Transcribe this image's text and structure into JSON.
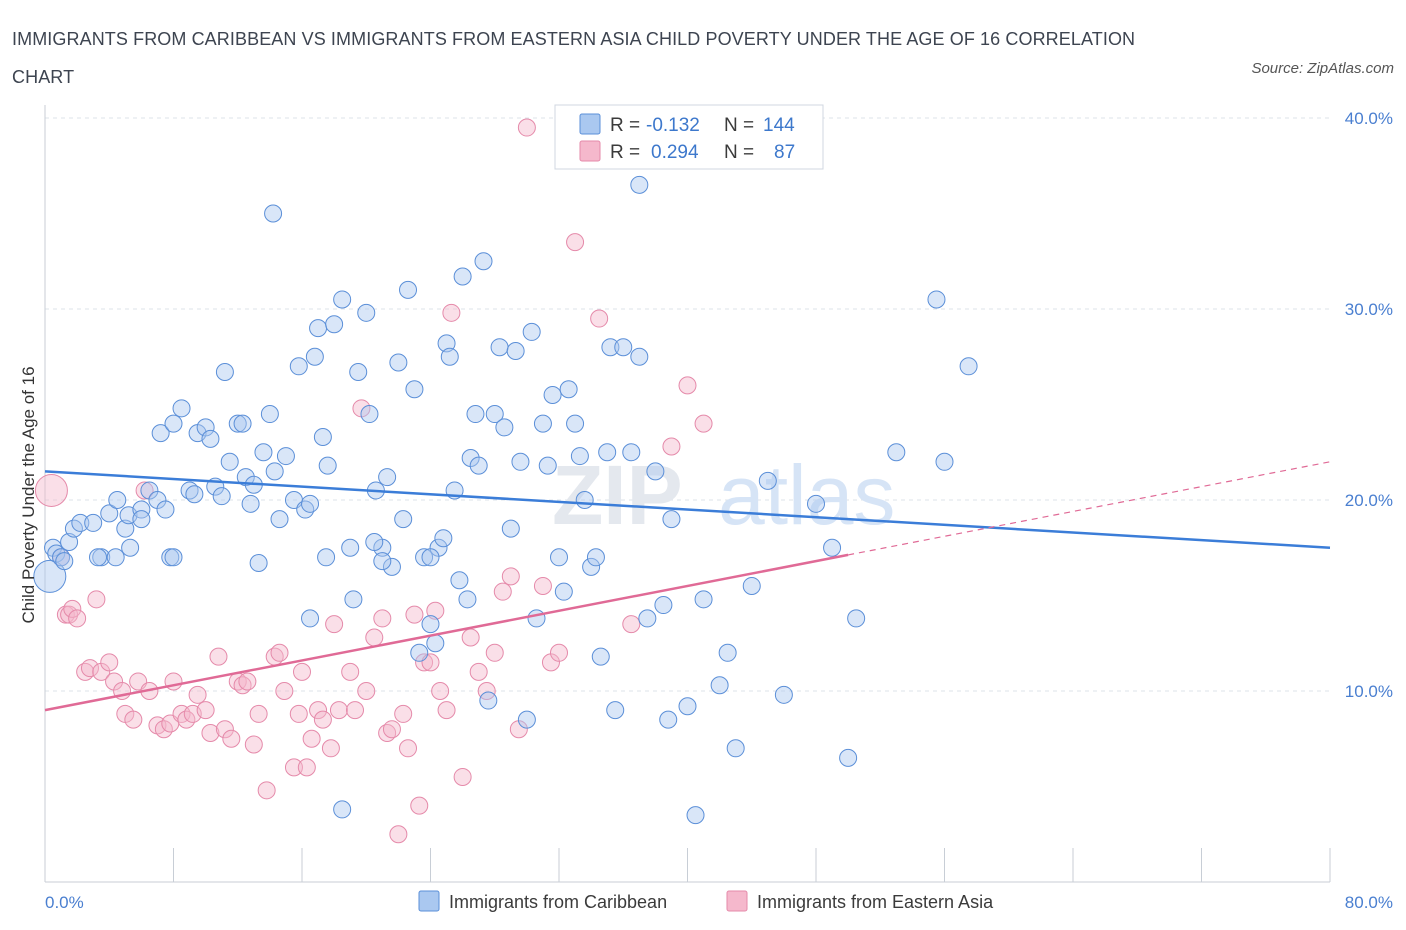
{
  "title": "IMMIGRANTS FROM CARIBBEAN VS IMMIGRANTS FROM EASTERN ASIA CHILD POVERTY UNDER THE AGE OF 16 CORRELATION CHART",
  "source": "Source: ZipAtlas.com",
  "colors": {
    "caribbean_fill": "#aac8f0",
    "caribbean_stroke": "#5b8fd8",
    "caribbean_line": "#3b7dd8",
    "eastasia_fill": "#f5b8cc",
    "eastasia_stroke": "#e58aaa",
    "eastasia_line": "#e06a96",
    "axis_text": "#4a7fd0",
    "grid": "#dde3ea"
  },
  "legend": {
    "rows": [
      {
        "r_label": "R =",
        "r_value": "-0.132",
        "n_label": "N =",
        "n_value": "144"
      },
      {
        "r_label": "R =",
        "r_value": "0.294",
        "n_label": "N =",
        "n_value": "87"
      }
    ]
  },
  "watermark": {
    "part1": "ZIP",
    "part2": "atlas"
  },
  "chart_data": {
    "type": "scatter",
    "title": "IMMIGRANTS FROM CARIBBEAN VS IMMIGRANTS FROM EASTERN ASIA CHILD POVERTY UNDER THE AGE OF 16 CORRELATION CHART",
    "xlabel": "",
    "ylabel": "Child Poverty Under the Age of 16",
    "xlim": [
      0,
      80
    ],
    "ylim": [
      0,
      40
    ],
    "x_tick_labels": [
      "0.0%",
      "80.0%"
    ],
    "y_tick_labels": [
      "10.0%",
      "20.0%",
      "30.0%",
      "40.0%"
    ],
    "y_ticks": [
      10,
      20,
      30,
      40
    ],
    "series": [
      {
        "name": "Immigrants from Caribbean",
        "R": -0.132,
        "N": 144,
        "trend": {
          "x": [
            0,
            80
          ],
          "y": [
            21.5,
            17.5
          ],
          "dashed_from_x": null
        },
        "points": [
          [
            0.3,
            16.0
          ],
          [
            0.5,
            17.5
          ],
          [
            0.7,
            17.2
          ],
          [
            1.0,
            17.0
          ],
          [
            1.2,
            16.8
          ],
          [
            1.5,
            17.8
          ],
          [
            1.8,
            18.5
          ],
          [
            2.2,
            18.8
          ],
          [
            3.0,
            18.8
          ],
          [
            3.5,
            17.0
          ],
          [
            4.0,
            19.3
          ],
          [
            4.5,
            20.0
          ],
          [
            5.0,
            18.5
          ],
          [
            5.3,
            17.5
          ],
          [
            5.2,
            19.2
          ],
          [
            4.4,
            17.0
          ],
          [
            6.0,
            19.5
          ],
          [
            6.5,
            20.5
          ],
          [
            7.0,
            20.0
          ],
          [
            7.5,
            19.5
          ],
          [
            7.2,
            23.5
          ],
          [
            7.8,
            17.0
          ],
          [
            8.0,
            24.0
          ],
          [
            8.5,
            24.8
          ],
          [
            9.0,
            20.5
          ],
          [
            9.3,
            20.3
          ],
          [
            9.5,
            23.5
          ],
          [
            10.0,
            23.8
          ],
          [
            10.3,
            23.2
          ],
          [
            10.6,
            20.7
          ],
          [
            11.0,
            20.2
          ],
          [
            11.2,
            26.7
          ],
          [
            11.5,
            22.0
          ],
          [
            12.0,
            24.0
          ],
          [
            12.3,
            24.0
          ],
          [
            12.5,
            21.2
          ],
          [
            12.8,
            19.8
          ],
          [
            13.0,
            20.8
          ],
          [
            13.3,
            16.7
          ],
          [
            13.6,
            22.5
          ],
          [
            14.0,
            24.5
          ],
          [
            14.3,
            21.5
          ],
          [
            14.6,
            19.0
          ],
          [
            15.0,
            22.3
          ],
          [
            14.2,
            35.0
          ],
          [
            15.5,
            20.0
          ],
          [
            15.8,
            27.0
          ],
          [
            16.2,
            19.5
          ],
          [
            16.5,
            19.8
          ],
          [
            16.8,
            27.5
          ],
          [
            17.0,
            29.0
          ],
          [
            17.3,
            23.3
          ],
          [
            17.6,
            21.8
          ],
          [
            18.0,
            29.2
          ],
          [
            17.5,
            17.0
          ],
          [
            18.5,
            30.5
          ],
          [
            19.0,
            17.5
          ],
          [
            19.2,
            14.8
          ],
          [
            19.5,
            26.7
          ],
          [
            20.0,
            29.8
          ],
          [
            20.2,
            24.5
          ],
          [
            20.6,
            20.5
          ],
          [
            21.0,
            17.5
          ],
          [
            21.3,
            21.2
          ],
          [
            21.6,
            16.5
          ],
          [
            22.0,
            27.2
          ],
          [
            22.3,
            19.0
          ],
          [
            22.6,
            31.0
          ],
          [
            23.0,
            25.8
          ],
          [
            23.3,
            12.0
          ],
          [
            23.6,
            17.0
          ],
          [
            24.0,
            13.5
          ],
          [
            24.3,
            12.5
          ],
          [
            24.5,
            17.5
          ],
          [
            24.8,
            18.0
          ],
          [
            25.0,
            28.2
          ],
          [
            25.2,
            27.5
          ],
          [
            25.5,
            20.5
          ],
          [
            25.8,
            15.8
          ],
          [
            26.0,
            31.7
          ],
          [
            26.3,
            14.8
          ],
          [
            26.5,
            22.2
          ],
          [
            26.8,
            24.5
          ],
          [
            27.0,
            21.8
          ],
          [
            27.3,
            32.5
          ],
          [
            27.6,
            9.5
          ],
          [
            28.0,
            24.5
          ],
          [
            28.3,
            28.0
          ],
          [
            28.6,
            23.8
          ],
          [
            29.0,
            18.5
          ],
          [
            29.3,
            27.8
          ],
          [
            29.6,
            22.0
          ],
          [
            30.0,
            8.5
          ],
          [
            30.3,
            28.8
          ],
          [
            30.6,
            13.8
          ],
          [
            31.0,
            24.0
          ],
          [
            31.3,
            21.8
          ],
          [
            31.6,
            25.5
          ],
          [
            32.0,
            17.0
          ],
          [
            32.3,
            15.2
          ],
          [
            32.6,
            25.8
          ],
          [
            33.0,
            24.0
          ],
          [
            33.3,
            22.3
          ],
          [
            33.6,
            20.0
          ],
          [
            34.0,
            16.5
          ],
          [
            34.3,
            17.0
          ],
          [
            34.6,
            11.8
          ],
          [
            35.0,
            22.5
          ],
          [
            35.2,
            28.0
          ],
          [
            35.5,
            9.0
          ],
          [
            36.0,
            28.0
          ],
          [
            36.5,
            22.5
          ],
          [
            37.0,
            27.5
          ],
          [
            37.5,
            13.8
          ],
          [
            38.0,
            21.5
          ],
          [
            38.5,
            14.5
          ],
          [
            38.8,
            8.5
          ],
          [
            39.0,
            19.0
          ],
          [
            40.0,
            9.2
          ],
          [
            41.0,
            14.8
          ],
          [
            42.0,
            10.3
          ],
          [
            42.5,
            12.0
          ],
          [
            43.0,
            7.0
          ],
          [
            44.0,
            15.5
          ],
          [
            45.0,
            21.0
          ],
          [
            46.0,
            9.8
          ],
          [
            48.0,
            19.8
          ],
          [
            49.0,
            17.5
          ],
          [
            50.0,
            6.5
          ],
          [
            50.5,
            13.8
          ],
          [
            53.0,
            22.5
          ],
          [
            55.5,
            30.5
          ],
          [
            56.0,
            22.0
          ],
          [
            57.5,
            27.0
          ],
          [
            18.5,
            3.8
          ],
          [
            40.5,
            3.5
          ],
          [
            16.5,
            13.8
          ],
          [
            20.5,
            17.8
          ],
          [
            21.0,
            16.8
          ],
          [
            24.0,
            17.0
          ],
          [
            8.0,
            17.0
          ],
          [
            3.3,
            17.0
          ],
          [
            6.0,
            19.0
          ],
          [
            37.0,
            36.5
          ]
        ]
      },
      {
        "name": "Immigrants from Eastern Asia",
        "R": 0.294,
        "N": 87,
        "trend": {
          "x": [
            0,
            80
          ],
          "y": [
            9.0,
            22.0
          ],
          "dashed_from_x": 50
        },
        "points": [
          [
            0.4,
            20.5
          ],
          [
            1.0,
            17.0
          ],
          [
            1.3,
            14.0
          ],
          [
            1.5,
            14.0
          ],
          [
            1.7,
            14.3
          ],
          [
            2.0,
            13.8
          ],
          [
            2.5,
            11.0
          ],
          [
            2.8,
            11.2
          ],
          [
            3.2,
            14.8
          ],
          [
            3.5,
            11.0
          ],
          [
            4.0,
            11.5
          ],
          [
            4.3,
            10.5
          ],
          [
            4.8,
            10.0
          ],
          [
            5.0,
            8.8
          ],
          [
            5.5,
            8.5
          ],
          [
            5.8,
            10.5
          ],
          [
            6.2,
            20.5
          ],
          [
            6.5,
            10.0
          ],
          [
            7.0,
            8.2
          ],
          [
            7.4,
            8.0
          ],
          [
            7.8,
            8.3
          ],
          [
            8.0,
            10.5
          ],
          [
            8.5,
            8.8
          ],
          [
            8.8,
            8.5
          ],
          [
            9.2,
            8.8
          ],
          [
            9.5,
            9.8
          ],
          [
            10.0,
            9.0
          ],
          [
            10.3,
            7.8
          ],
          [
            10.8,
            11.8
          ],
          [
            11.2,
            8.0
          ],
          [
            11.6,
            7.5
          ],
          [
            12.0,
            10.5
          ],
          [
            12.3,
            10.3
          ],
          [
            12.6,
            10.5
          ],
          [
            13.0,
            7.2
          ],
          [
            13.3,
            8.8
          ],
          [
            13.8,
            4.8
          ],
          [
            14.3,
            11.8
          ],
          [
            14.6,
            12.0
          ],
          [
            14.9,
            10.0
          ],
          [
            15.5,
            6.0
          ],
          [
            15.8,
            8.8
          ],
          [
            16.0,
            11.0
          ],
          [
            16.3,
            6.0
          ],
          [
            16.6,
            7.5
          ],
          [
            17.0,
            9.0
          ],
          [
            17.3,
            8.5
          ],
          [
            17.8,
            7.0
          ],
          [
            18.0,
            13.5
          ],
          [
            18.3,
            9.0
          ],
          [
            19.0,
            11.0
          ],
          [
            19.3,
            9.0
          ],
          [
            19.7,
            24.8
          ],
          [
            20.0,
            10.0
          ],
          [
            20.5,
            12.8
          ],
          [
            21.0,
            13.8
          ],
          [
            21.3,
            7.8
          ],
          [
            21.6,
            8.0
          ],
          [
            22.0,
            2.5
          ],
          [
            22.3,
            8.8
          ],
          [
            22.6,
            7.0
          ],
          [
            23.0,
            14.0
          ],
          [
            23.3,
            4.0
          ],
          [
            23.6,
            11.5
          ],
          [
            24.0,
            11.5
          ],
          [
            24.3,
            14.2
          ],
          [
            24.6,
            10.0
          ],
          [
            25.0,
            9.0
          ],
          [
            25.3,
            29.8
          ],
          [
            26.0,
            5.5
          ],
          [
            26.5,
            12.8
          ],
          [
            27.0,
            11.0
          ],
          [
            27.5,
            10.0
          ],
          [
            28.0,
            12.0
          ],
          [
            28.5,
            15.2
          ],
          [
            29.0,
            16.0
          ],
          [
            29.5,
            8.0
          ],
          [
            30.0,
            39.5
          ],
          [
            31.0,
            15.5
          ],
          [
            31.5,
            11.5
          ],
          [
            32.0,
            12.0
          ],
          [
            33.0,
            33.5
          ],
          [
            34.5,
            29.5
          ],
          [
            36.5,
            13.5
          ],
          [
            39.0,
            22.8
          ],
          [
            40.0,
            26.0
          ],
          [
            41.0,
            24.0
          ]
        ]
      }
    ]
  },
  "bottom_legend": {
    "items": [
      "Immigrants from Caribbean",
      "Immigrants from Eastern Asia"
    ]
  }
}
